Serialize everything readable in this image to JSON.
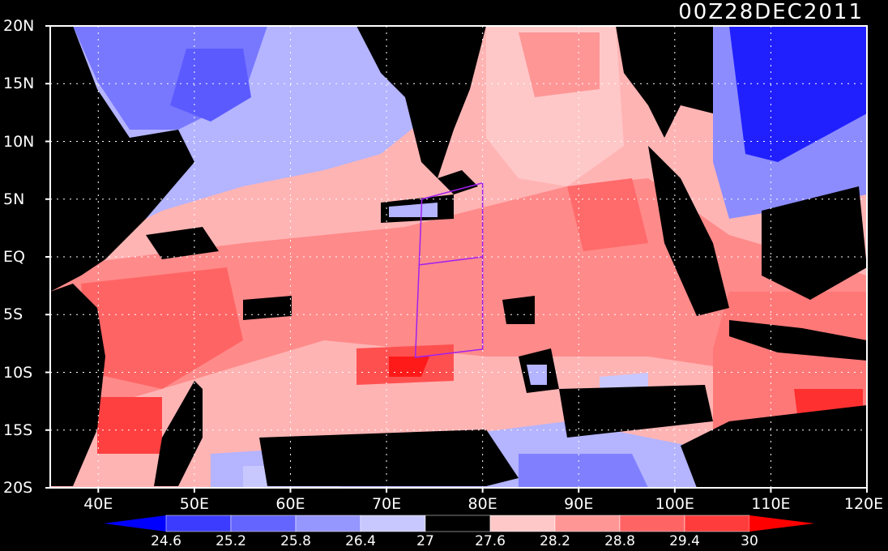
{
  "title": "00Z28DEC2011",
  "map": {
    "lat_labels": [
      "20N",
      "15N",
      "10N",
      "5N",
      "EQ",
      "5S",
      "10S",
      "15S",
      "20S"
    ],
    "lat_values": [
      20,
      15,
      10,
      5,
      0,
      -5,
      -10,
      -15,
      -20
    ],
    "lon_labels": [
      "40E",
      "50E",
      "60E",
      "70E",
      "80E",
      "90E",
      "100E",
      "110E",
      "120E"
    ],
    "lon_values": [
      40,
      50,
      60,
      70,
      80,
      90,
      100,
      110,
      120
    ],
    "lon_range": [
      35,
      120
    ],
    "lat_range": [
      -20,
      20
    ],
    "grid": "dotted",
    "box_region": {
      "lon": [
        73,
        80
      ],
      "lat": [
        -8,
        5
      ]
    }
  },
  "colorbar": {
    "labels": [
      "24.6",
      "25.2",
      "25.8",
      "26.4",
      "27",
      "27.6",
      "28.2",
      "28.8",
      "29.4",
      "30"
    ],
    "colors": [
      "#0000ff",
      "#3c3cff",
      "#6464ff",
      "#9696ff",
      "#c8c8ff",
      "#000000",
      "#ffc8c8",
      "#ff9696",
      "#ff6464",
      "#ff3c3c",
      "#ff0000"
    ]
  }
}
